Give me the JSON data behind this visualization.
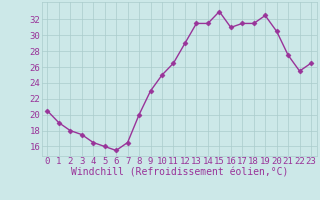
{
  "x": [
    0,
    1,
    2,
    3,
    4,
    5,
    6,
    7,
    8,
    9,
    10,
    11,
    12,
    13,
    14,
    15,
    16,
    17,
    18,
    19,
    20,
    21,
    22,
    23
  ],
  "y": [
    20.5,
    19.0,
    18.0,
    17.5,
    16.5,
    16.0,
    15.5,
    16.5,
    20.0,
    23.0,
    25.0,
    26.5,
    29.0,
    31.5,
    31.5,
    33.0,
    31.0,
    31.5,
    31.5,
    32.5,
    30.5,
    27.5,
    25.5,
    26.5
  ],
  "line_color": "#993399",
  "marker": "D",
  "markersize": 2.5,
  "linewidth": 1.0,
  "bg_color": "#cce8e8",
  "grid_color": "#aacccc",
  "xlabel": "Windchill (Refroidissement éolien,°C)",
  "xlabel_color": "#993399",
  "ylabel_ticks": [
    16,
    18,
    20,
    22,
    24,
    26,
    28,
    30,
    32
  ],
  "ylim": [
    14.8,
    34.2
  ],
  "xlim": [
    -0.5,
    23.5
  ],
  "tick_color": "#993399",
  "xlabel_fontsize": 7,
  "tick_fontsize": 6.5
}
